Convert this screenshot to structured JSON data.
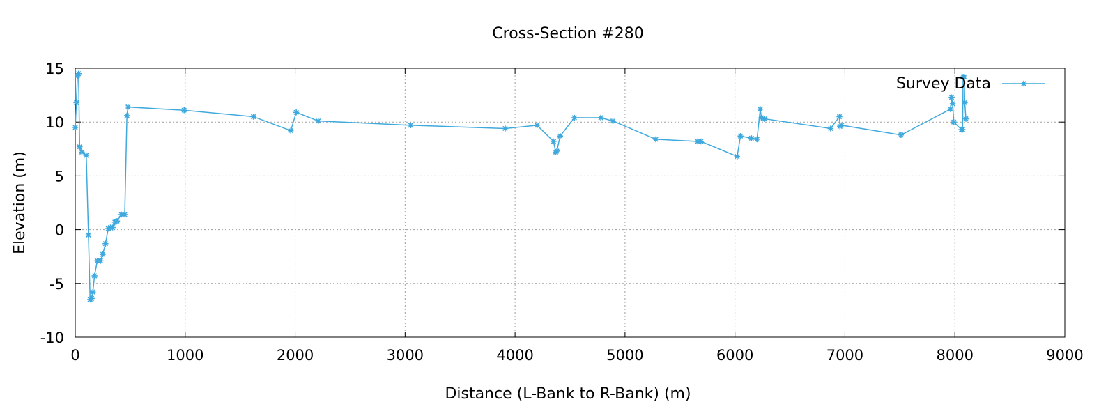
{
  "chart_data": {
    "type": "line",
    "title": "Cross-Section #280",
    "xlabel": "Distance (L-Bank to R-Bank) (m)",
    "ylabel": "Elevation (m)",
    "xlim": [
      0,
      9000
    ],
    "ylim": [
      -10,
      15
    ],
    "xticks": [
      0,
      1000,
      2000,
      3000,
      4000,
      5000,
      6000,
      7000,
      8000,
      9000
    ],
    "yticks": [
      -10,
      -5,
      0,
      5,
      10,
      15
    ],
    "grid": true,
    "legend_position": "top-right",
    "series": [
      {
        "name": "Survey Data",
        "color": "#3fa9dd",
        "marker": "star",
        "points": [
          [
            0,
            9.5
          ],
          [
            10,
            11.8
          ],
          [
            20,
            14.3
          ],
          [
            30,
            14.5
          ],
          [
            40,
            7.7
          ],
          [
            60,
            7.2
          ],
          [
            100,
            6.9
          ],
          [
            120,
            -0.5
          ],
          [
            135,
            -6.5
          ],
          [
            150,
            -6.4
          ],
          [
            160,
            -5.8
          ],
          [
            175,
            -4.3
          ],
          [
            200,
            -2.9
          ],
          [
            230,
            -2.9
          ],
          [
            250,
            -2.3
          ],
          [
            275,
            -1.3
          ],
          [
            300,
            0.1
          ],
          [
            320,
            0.2
          ],
          [
            340,
            0.2
          ],
          [
            360,
            0.7
          ],
          [
            380,
            0.8
          ],
          [
            420,
            1.4
          ],
          [
            450,
            1.4
          ],
          [
            470,
            10.6
          ],
          [
            480,
            11.4
          ],
          [
            990,
            11.1
          ],
          [
            1620,
            10.5
          ],
          [
            1960,
            9.2
          ],
          [
            2010,
            10.9
          ],
          [
            2210,
            10.1
          ],
          [
            3050,
            9.7
          ],
          [
            3910,
            9.4
          ],
          [
            4200,
            9.7
          ],
          [
            4350,
            8.2
          ],
          [
            4370,
            7.2
          ],
          [
            4380,
            7.3
          ],
          [
            4410,
            8.7
          ],
          [
            4540,
            10.4
          ],
          [
            4780,
            10.4
          ],
          [
            4890,
            10.1
          ],
          [
            5280,
            8.4
          ],
          [
            5660,
            8.2
          ],
          [
            5690,
            8.2
          ],
          [
            6020,
            6.8
          ],
          [
            6050,
            8.7
          ],
          [
            6150,
            8.5
          ],
          [
            6200,
            8.4
          ],
          [
            6230,
            11.2
          ],
          [
            6240,
            10.4
          ],
          [
            6270,
            10.3
          ],
          [
            6870,
            9.4
          ],
          [
            6950,
            10.5
          ],
          [
            6955,
            9.6
          ],
          [
            6970,
            9.7
          ],
          [
            7510,
            8.8
          ],
          [
            7960,
            11.2
          ],
          [
            7970,
            12.3
          ],
          [
            7980,
            11.7
          ],
          [
            7990,
            10.0
          ],
          [
            8060,
            9.3
          ],
          [
            8070,
            9.3
          ],
          [
            8075,
            14.2
          ],
          [
            8085,
            14.2
          ],
          [
            8090,
            11.8
          ],
          [
            8100,
            10.3
          ]
        ]
      }
    ]
  }
}
